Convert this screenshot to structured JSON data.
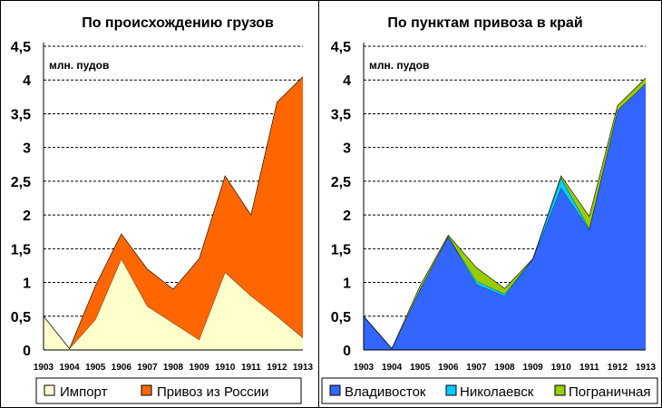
{
  "chart_data": [
    {
      "type": "area",
      "title": "По происхождению грузов",
      "unit_label": "млн. пудов",
      "x": [
        "1903",
        "1904",
        "1905",
        "1906",
        "1907",
        "1908",
        "1909",
        "1910",
        "1911",
        "1912",
        "1913"
      ],
      "yticks": [
        "0",
        "0,5",
        "1",
        "1,5",
        "2",
        "2,5",
        "3",
        "3,5",
        "4",
        "4,5"
      ],
      "ylim": [
        0,
        4.5
      ],
      "grid": true,
      "stacked": true,
      "legend_position": "bottom",
      "series": [
        {
          "name": "Импорт",
          "color": "#FFFFCC",
          "values": [
            0.5,
            0.02,
            0.45,
            1.35,
            0.65,
            0.4,
            0.15,
            1.15,
            0.8,
            0.5,
            0.18
          ]
        },
        {
          "name": "Привоз из России",
          "color": "#FF6600",
          "values": [
            0,
            0,
            0.5,
            0.37,
            0.55,
            0.5,
            1.2,
            1.43,
            1.2,
            3.17,
            3.87
          ]
        }
      ]
    },
    {
      "type": "area",
      "title": "По пунктам привоза в край",
      "unit_label": "млн. пудов",
      "x": [
        "1903",
        "1904",
        "1905",
        "1906",
        "1907",
        "1908",
        "1909",
        "1910",
        "1911",
        "1912",
        "1913"
      ],
      "yticks": [
        "0",
        "0,5",
        "1",
        "1,5",
        "2",
        "2,5",
        "3",
        "3,5",
        "4",
        "4,5"
      ],
      "ylim": [
        0,
        4.5
      ],
      "grid": true,
      "stacked": true,
      "legend_position": "bottom",
      "series": [
        {
          "name": "Владивосток",
          "color": "#3366FF",
          "values": [
            0.5,
            0.02,
            0.9,
            1.68,
            0.97,
            0.8,
            1.35,
            2.4,
            1.78,
            3.55,
            3.95
          ]
        },
        {
          "name": "Николаевск",
          "color": "#00CCFF",
          "values": [
            0,
            0,
            0,
            0,
            0.05,
            0.03,
            0,
            0.15,
            0.02,
            0,
            0
          ]
        },
        {
          "name": "Пограничная",
          "color": "#99CC00",
          "values": [
            0,
            0,
            0.05,
            0.02,
            0.2,
            0.08,
            0,
            0.03,
            0.18,
            0.07,
            0.08
          ]
        }
      ]
    }
  ]
}
